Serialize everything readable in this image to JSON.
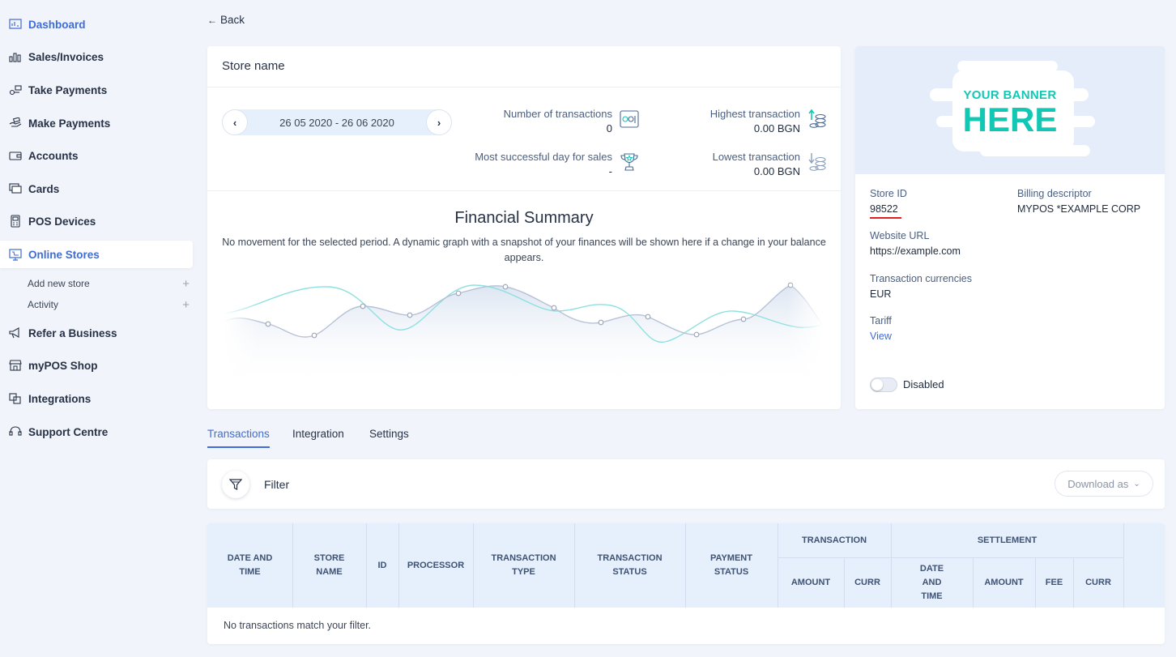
{
  "sidebar": {
    "items": [
      {
        "label": "Dashboard",
        "icon": "dashboard-icon"
      },
      {
        "label": "Sales/Invoices",
        "icon": "bar-chart-icon"
      },
      {
        "label": "Take Payments",
        "icon": "payments-in-icon"
      },
      {
        "label": "Make Payments",
        "icon": "hand-card-icon"
      },
      {
        "label": "Accounts",
        "icon": "wallet-icon"
      },
      {
        "label": "Cards",
        "icon": "cards-icon"
      },
      {
        "label": "POS Devices",
        "icon": "pos-device-icon"
      },
      {
        "label": "Online Stores",
        "icon": "online-store-icon"
      },
      {
        "label": "Refer a Business",
        "icon": "megaphone-icon"
      },
      {
        "label": "myPOS Shop",
        "icon": "shop-icon"
      },
      {
        "label": "Integrations",
        "icon": "integrations-icon"
      },
      {
        "label": "Support Centre",
        "icon": "headset-icon"
      }
    ],
    "subitems": [
      {
        "label": "Add new store",
        "action": "+"
      },
      {
        "label": "Activity",
        "action": "+"
      }
    ]
  },
  "back_label": "Back",
  "store": {
    "title": "Store name",
    "date_range": "26 05 2020 - 26 06 2020",
    "stats": {
      "transactions_label": "Number of transactions",
      "transactions_value": "0",
      "highest_label": "Highest transaction",
      "highest_value": "0.00 BGN",
      "best_day_label": "Most successful day for sales",
      "best_day_value": "-",
      "lowest_label": "Lowest transaction",
      "lowest_value": "0.00 BGN"
    },
    "summary_title": "Financial Summary",
    "summary_text": "No movement for the selected period. A dynamic graph with a snapshot of your finances will be shown here if a change in your balance appears."
  },
  "banner": {
    "line1": "YOUR BANNER",
    "line2": "HERE"
  },
  "store_info": {
    "store_id_label": "Store ID",
    "store_id_value": "98522",
    "billing_label": "Billing descriptor",
    "billing_value": "MYPOS *EXAMPLE CORP",
    "website_label": "Website URL",
    "website_value": "https://example.com",
    "currencies_label": "Transaction currencies",
    "currencies_value": "EUR",
    "tariff_label": "Tariff",
    "tariff_link": "View",
    "status_label": "Disabled"
  },
  "tabs": [
    "Transactions",
    "Integration",
    "Settings"
  ],
  "filter": {
    "label": "Filter",
    "download_label": "Download as"
  },
  "table": {
    "columns": [
      "DATE AND TIME",
      "STORE NAME",
      "ID",
      "PROCESSOR",
      "TRANSACTION TYPE",
      "TRANSACTION STATUS",
      "PAYMENT STATUS"
    ],
    "group_transaction": "TRANSACTION",
    "group_settlement": "SETTLEMENT",
    "transaction_sub": [
      "AMOUNT",
      "CURR"
    ],
    "settlement_sub": [
      "DATE AND TIME",
      "AMOUNT",
      "FEE",
      "CURR"
    ],
    "empty_text": "No transactions match your filter."
  },
  "colors": {
    "accent": "#3f6cd6",
    "banner_teal": "#12c7b4",
    "underline_red": "#e02020",
    "background": "#f1f4fa"
  }
}
